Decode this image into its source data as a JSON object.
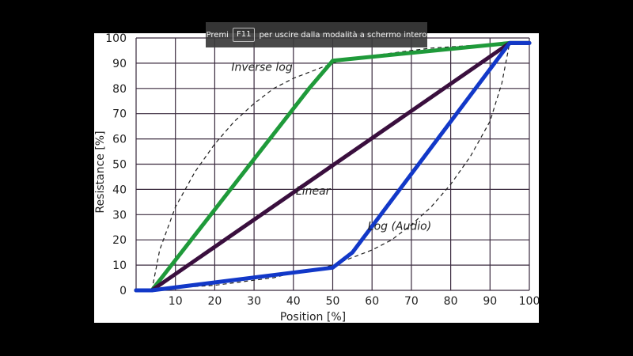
{
  "banner": {
    "prefix": "Premi",
    "key": "F11",
    "suffix": "per uscire dalla modalità a schermo intero"
  },
  "colors": {
    "inverse_log": "#1f9a3a",
    "linear": "#3a0f3e",
    "log_audio": "#1238c8",
    "ideal_dashed": "#1e1e1e",
    "grid": "#3a2a3e"
  },
  "chart_data": {
    "type": "line",
    "xlabel": "Position [%]",
    "ylabel": "Resistance [%]",
    "xlim": [
      0,
      100
    ],
    "ylim": [
      0,
      100
    ],
    "grid": true,
    "x_ticks": [
      "0",
      "10",
      "20",
      "30",
      "40",
      "50",
      "60",
      "70",
      "80",
      "90",
      "100"
    ],
    "y_ticks": [
      "0",
      "10",
      "20",
      "30",
      "40",
      "50",
      "60",
      "70",
      "80",
      "90",
      "100"
    ],
    "series": [
      {
        "key": "inverse_log",
        "label": "Inverse log",
        "label_at": [
          32,
          87
        ],
        "x": [
          0,
          4,
          44,
          50,
          95,
          100
        ],
        "y": [
          0,
          0,
          80,
          91,
          98,
          98
        ]
      },
      {
        "key": "linear",
        "label": "Linear",
        "label_at": [
          45,
          38
        ],
        "x": [
          0,
          4,
          95,
          100
        ],
        "y": [
          0,
          0,
          98,
          98
        ]
      },
      {
        "key": "log_audio",
        "label": "Log (Audio)",
        "label_at": [
          67,
          24
        ],
        "x": [
          0,
          4,
          50,
          55,
          95,
          100
        ],
        "y": [
          0,
          0,
          9,
          15,
          98,
          98
        ]
      }
    ],
    "ideal_curves": [
      {
        "name": "inverse-log-ideal",
        "x": [
          4,
          6,
          10,
          15,
          20,
          25,
          30,
          35,
          40,
          45,
          50,
          55,
          60,
          65,
          70,
          75,
          80,
          85,
          90,
          95
        ],
        "y": [
          0,
          16,
          33,
          47,
          58,
          67,
          74,
          80,
          84,
          87,
          90,
          92,
          93,
          94,
          95,
          96,
          96.5,
          97,
          97.5,
          98
        ]
      },
      {
        "name": "log-audio-ideal",
        "x": [
          4,
          10,
          15,
          20,
          25,
          30,
          35,
          40,
          45,
          50,
          55,
          60,
          65,
          70,
          75,
          80,
          85,
          90,
          93,
          95
        ],
        "y": [
          0,
          1,
          1.5,
          2,
          3,
          4,
          5,
          7,
          8,
          10,
          13,
          16,
          20,
          26,
          33,
          42,
          53,
          67,
          82,
          98
        ]
      }
    ]
  }
}
